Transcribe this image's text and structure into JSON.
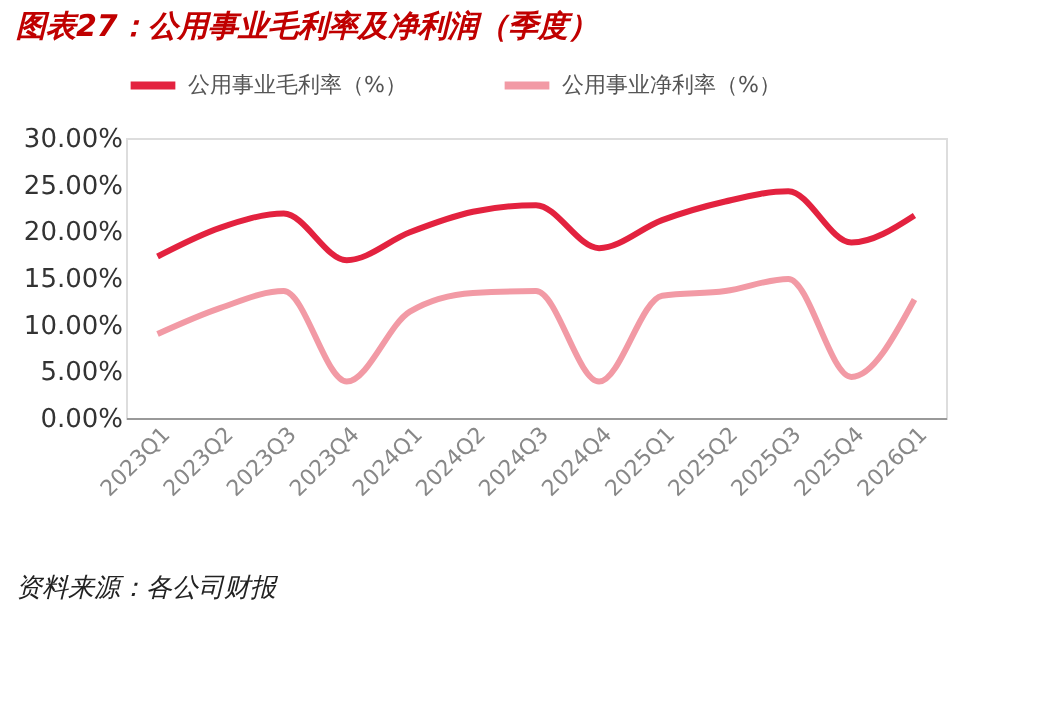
{
  "chart_data": {
    "type": "line",
    "title": "图表27：公用事业毛利率及净利润（季度）",
    "categories": [
      "2023Q1",
      "2023Q2",
      "2023Q3",
      "2023Q4",
      "2024Q1",
      "2024Q2",
      "2024Q3",
      "2024Q4",
      "2025Q1",
      "2025Q2",
      "2025Q3",
      "2025Q4",
      "2026Q1"
    ],
    "series": [
      {
        "name": "公用事业毛利率（%）",
        "color": "#e3223f",
        "values": [
          17.3,
          20.4,
          21.9,
          16.9,
          19.9,
          22.1,
          22.8,
          18.2,
          21.2,
          23.2,
          24.3,
          18.8,
          21.7
        ]
      },
      {
        "name": "公用事业净利率（%）",
        "color": "#f29aa5",
        "values": [
          9.0,
          11.8,
          13.6,
          3.9,
          11.4,
          13.4,
          13.6,
          3.9,
          13.1,
          13.6,
          14.9,
          4.4,
          12.7
        ]
      }
    ],
    "ylim": [
      0,
      30
    ],
    "yticks": [
      {
        "value": 0,
        "label": "0.00%"
      },
      {
        "value": 5,
        "label": "5.00%"
      },
      {
        "value": 10,
        "label": "10.00%"
      },
      {
        "value": 15,
        "label": "15.00%"
      },
      {
        "value": 20,
        "label": "20.00%"
      },
      {
        "value": 25,
        "label": "25.00%"
      },
      {
        "value": 30,
        "label": "30.00%"
      }
    ],
    "grid": false,
    "legend": "top",
    "marker": "none",
    "line_style": "solid",
    "annotations": [
      "资料来源：各公司财报"
    ]
  }
}
